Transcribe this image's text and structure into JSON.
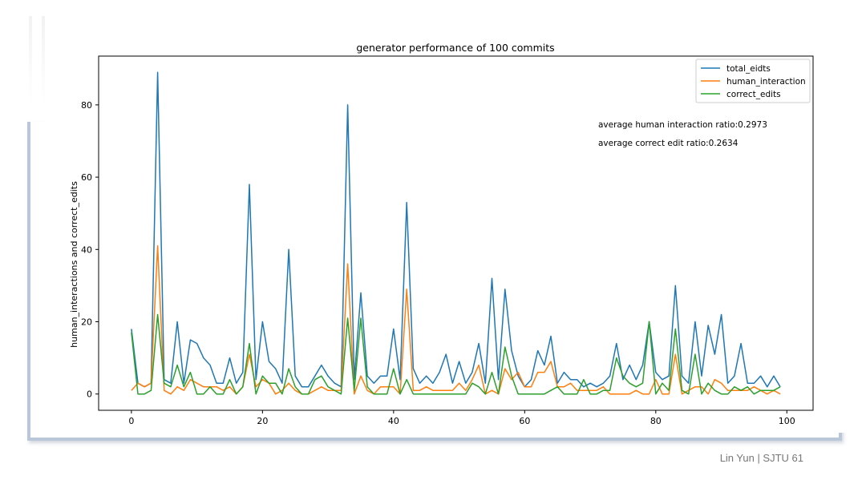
{
  "footer": {
    "text": "Lin Yun | SJTU 61"
  },
  "colors": {
    "total_eidts": "#1f77b4",
    "human_interaction": "#ff7f0e",
    "correct_edits": "#2ca02c",
    "axes": "#000000",
    "frame": "#b9c7d8"
  },
  "chart_data": {
    "type": "line",
    "title": "generator performance of 100 commits",
    "xlabel": "",
    "ylabel": "human_interactions and correct_edits",
    "xlim": [
      -5,
      104
    ],
    "ylim": [
      -4.5,
      93.5
    ],
    "xticks": [
      0,
      20,
      40,
      60,
      80,
      100
    ],
    "yticks": [
      0,
      20,
      40,
      60,
      80
    ],
    "grid": false,
    "legend_position": "top-right",
    "annotations": [
      "average human interaction ratio:0.2973",
      "average correct edit ratio:0.2634"
    ],
    "series": [
      {
        "name": "total_eidts",
        "values": [
          18,
          3,
          2,
          3,
          89,
          4,
          3,
          20,
          3,
          15,
          14,
          10,
          8,
          3,
          3,
          10,
          3,
          6,
          58,
          4,
          20,
          9,
          7,
          3,
          40,
          5,
          2,
          2,
          5,
          8,
          5,
          3,
          2,
          80,
          4,
          28,
          5,
          3,
          5,
          5,
          18,
          4,
          53,
          7,
          3,
          5,
          3,
          6,
          11,
          3,
          9,
          3,
          6,
          14,
          3,
          32,
          4,
          29,
          12,
          5,
          2,
          4,
          12,
          8,
          16,
          3,
          6,
          4,
          4,
          2,
          3,
          2,
          3,
          5,
          14,
          4,
          8,
          4,
          8,
          20,
          6,
          4,
          5,
          30,
          5,
          3,
          20,
          5,
          19,
          11,
          22,
          3,
          5,
          14,
          3,
          3,
          5,
          2,
          5,
          2
        ]
      },
      {
        "name": "human_interaction",
        "values": [
          1,
          3,
          2,
          3,
          41,
          1,
          0,
          2,
          1,
          4,
          3,
          2,
          2,
          2,
          1,
          2,
          0,
          2,
          11,
          2,
          4,
          3,
          0,
          1,
          3,
          1,
          0,
          0,
          1,
          2,
          1,
          1,
          1,
          36,
          0,
          5,
          1,
          0,
          2,
          2,
          2,
          0,
          29,
          1,
          1,
          2,
          1,
          1,
          1,
          1,
          3,
          1,
          4,
          8,
          0,
          1,
          0,
          7,
          4,
          6,
          2,
          2,
          6,
          6,
          9,
          2,
          2,
          3,
          1,
          1,
          1,
          1,
          2,
          0,
          0,
          0,
          0,
          1,
          0,
          0,
          4,
          0,
          0,
          11,
          0,
          1,
          2,
          2,
          0,
          4,
          3,
          1,
          1,
          1,
          1,
          2,
          1,
          0,
          1,
          0
        ]
      },
      {
        "name": "correct_edits",
        "values": [
          17,
          0,
          0,
          1,
          22,
          3,
          2,
          8,
          2,
          6,
          0,
          0,
          2,
          0,
          0,
          4,
          0,
          2,
          14,
          0,
          5,
          3,
          3,
          0,
          7,
          2,
          0,
          0,
          4,
          5,
          2,
          1,
          0,
          21,
          1,
          21,
          2,
          0,
          0,
          0,
          7,
          0,
          4,
          0,
          0,
          0,
          0,
          0,
          0,
          0,
          0,
          0,
          3,
          2,
          0,
          6,
          0,
          13,
          5,
          0,
          0,
          0,
          0,
          0,
          1,
          2,
          0,
          0,
          0,
          4,
          0,
          0,
          1,
          1,
          10,
          5,
          3,
          2,
          3,
          20,
          0,
          3,
          1,
          18,
          1,
          0,
          11,
          0,
          3,
          1,
          0,
          0,
          2,
          1,
          2,
          0,
          1,
          1,
          1,
          2
        ]
      }
    ]
  }
}
